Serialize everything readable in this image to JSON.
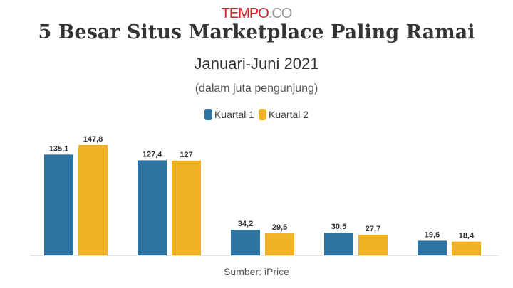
{
  "logo": {
    "main": "TEMPO",
    "suffix": ".CO"
  },
  "chart_data": {
    "type": "bar",
    "title": "5 Besar Situs Marketplace Paling Ramai",
    "subtitle": "Januari-Juni 2021",
    "note": "(dalam juta pengunjung)",
    "source": "Sumber: iPrice",
    "categories": [
      "",
      "",
      "",
      "",
      ""
    ],
    "series": [
      {
        "name": "Kuartal 1",
        "color": "#2e74a3",
        "values": [
          135.1,
          127.4,
          34.2,
          30.5,
          19.6
        ],
        "labels": [
          "135,1",
          "127,4",
          "34,2",
          "30,5",
          "19,6"
        ]
      },
      {
        "name": "Kuartal 2",
        "color": "#f0b323",
        "values": [
          147.8,
          127,
          29.5,
          27.7,
          18.4
        ],
        "labels": [
          "147,8",
          "127",
          "29,5",
          "27,7",
          "18,4"
        ]
      }
    ],
    "ylim": [
      0,
      147.8
    ],
    "grid": false,
    "legend": "top-center"
  }
}
